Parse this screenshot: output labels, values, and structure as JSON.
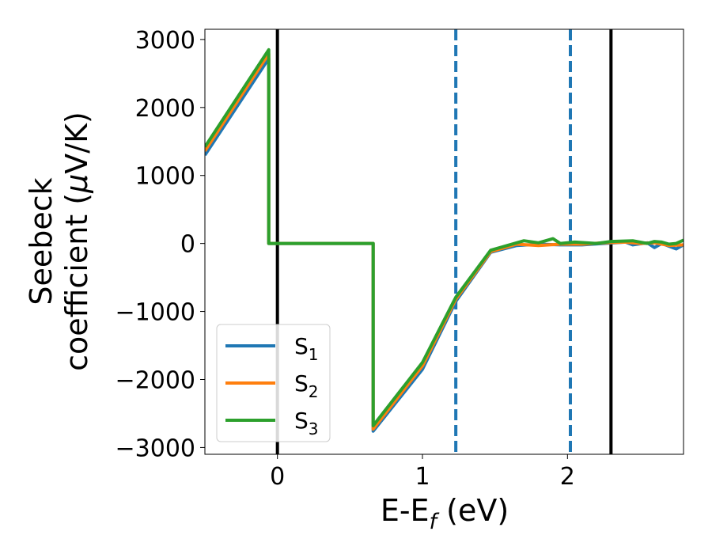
{
  "chart_data": {
    "type": "line",
    "xlabel": {
      "main": "E-E",
      "sub": "f",
      "tail": " (eV)"
    },
    "ylabel": {
      "line1": "Seebeck",
      "line2a": "coefficient  (",
      "line2mu": "μ",
      "line2b": "V/K)"
    },
    "xlim": [
      -0.5,
      2.8
    ],
    "ylim": [
      -3100,
      3150
    ],
    "xticks": [
      0,
      1,
      2
    ],
    "xtick_labels": [
      "0",
      "1",
      "2"
    ],
    "yticks": [
      -3000,
      -2000,
      -1000,
      0,
      1000,
      2000,
      3000
    ],
    "ytick_labels": [
      "−3000",
      "−2000",
      "−1000",
      "0",
      "1000",
      "2000",
      "3000"
    ],
    "grid": false,
    "legend_position": "lower-left",
    "vlines": [
      {
        "x": 0.0,
        "style": "solid",
        "color": "#000000"
      },
      {
        "x": 1.23,
        "style": "dashed",
        "color": "#1f77b4"
      },
      {
        "x": 2.02,
        "style": "dashed",
        "color": "#1f77b4"
      },
      {
        "x": 2.3,
        "style": "solid",
        "color": "#000000"
      }
    ],
    "series": [
      {
        "name": "S",
        "sub": "1",
        "color": "#1f77b4",
        "x": [
          -0.5,
          -0.06,
          -0.06,
          0.66,
          0.66,
          1.0,
          1.23,
          1.47,
          1.65,
          1.8,
          1.95,
          2.1,
          2.25,
          2.4,
          2.45,
          2.55,
          2.6,
          2.65,
          2.7,
          2.75,
          2.8
        ],
        "y": [
          1300,
          2720,
          0,
          0,
          -2760,
          -1850,
          -850,
          -130,
          -30,
          -10,
          -20,
          -20,
          0,
          20,
          -20,
          10,
          -60,
          0,
          -40,
          -80,
          -20
        ]
      },
      {
        "name": "S",
        "sub": "2",
        "color": "#ff7f0e",
        "x": [
          -0.5,
          -0.06,
          -0.06,
          0.66,
          0.66,
          1.0,
          1.23,
          1.47,
          1.65,
          1.8,
          1.95,
          2.1,
          2.25,
          2.4,
          2.5,
          2.6,
          2.7,
          2.8
        ],
        "y": [
          1360,
          2790,
          0,
          0,
          -2730,
          -1800,
          -820,
          -120,
          -10,
          -30,
          -10,
          -10,
          10,
          20,
          0,
          10,
          -30,
          -20
        ]
      },
      {
        "name": "S",
        "sub": "3",
        "color": "#2ca02c",
        "x": [
          -0.5,
          -0.06,
          -0.06,
          0.66,
          0.66,
          1.0,
          1.23,
          1.47,
          1.7,
          1.8,
          1.85,
          1.9,
          1.95,
          2.05,
          2.2,
          2.3,
          2.45,
          2.55,
          2.6,
          2.65,
          2.7,
          2.75,
          2.8
        ],
        "y": [
          1420,
          2850,
          0,
          0,
          -2680,
          -1750,
          -790,
          -100,
          40,
          10,
          40,
          70,
          0,
          20,
          0,
          30,
          40,
          0,
          30,
          20,
          -10,
          0,
          50
        ]
      }
    ]
  }
}
